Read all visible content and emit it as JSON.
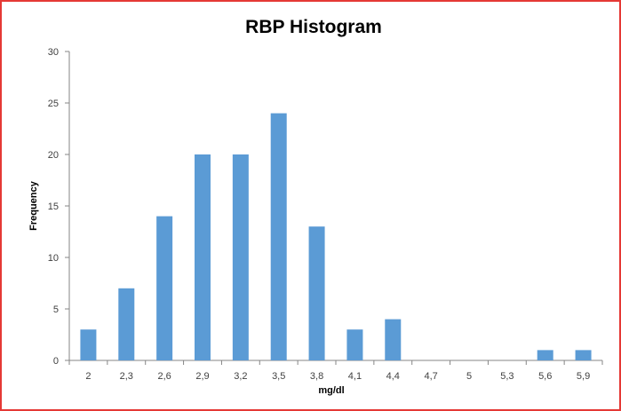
{
  "chart_data": {
    "type": "bar",
    "title": "RBP Histogram",
    "xlabel": "mg/dl",
    "ylabel": "Frequency",
    "categories": [
      "2",
      "2,3",
      "2,6",
      "2,9",
      "3,2",
      "3,5",
      "3,8",
      "4,1",
      "4,4",
      "4,7",
      "5",
      "5,3",
      "5,6",
      "5,9"
    ],
    "values": [
      3,
      7,
      14,
      20,
      20,
      24,
      13,
      3,
      4,
      0,
      0,
      0,
      1,
      1
    ],
    "ylim": [
      0,
      30
    ],
    "yticks": [
      "0",
      "5",
      "10",
      "15",
      "20",
      "25",
      "30"
    ],
    "grid": false,
    "legend": "none",
    "bar_color": "#5b9bd5",
    "frame_color": "#e53935"
  }
}
